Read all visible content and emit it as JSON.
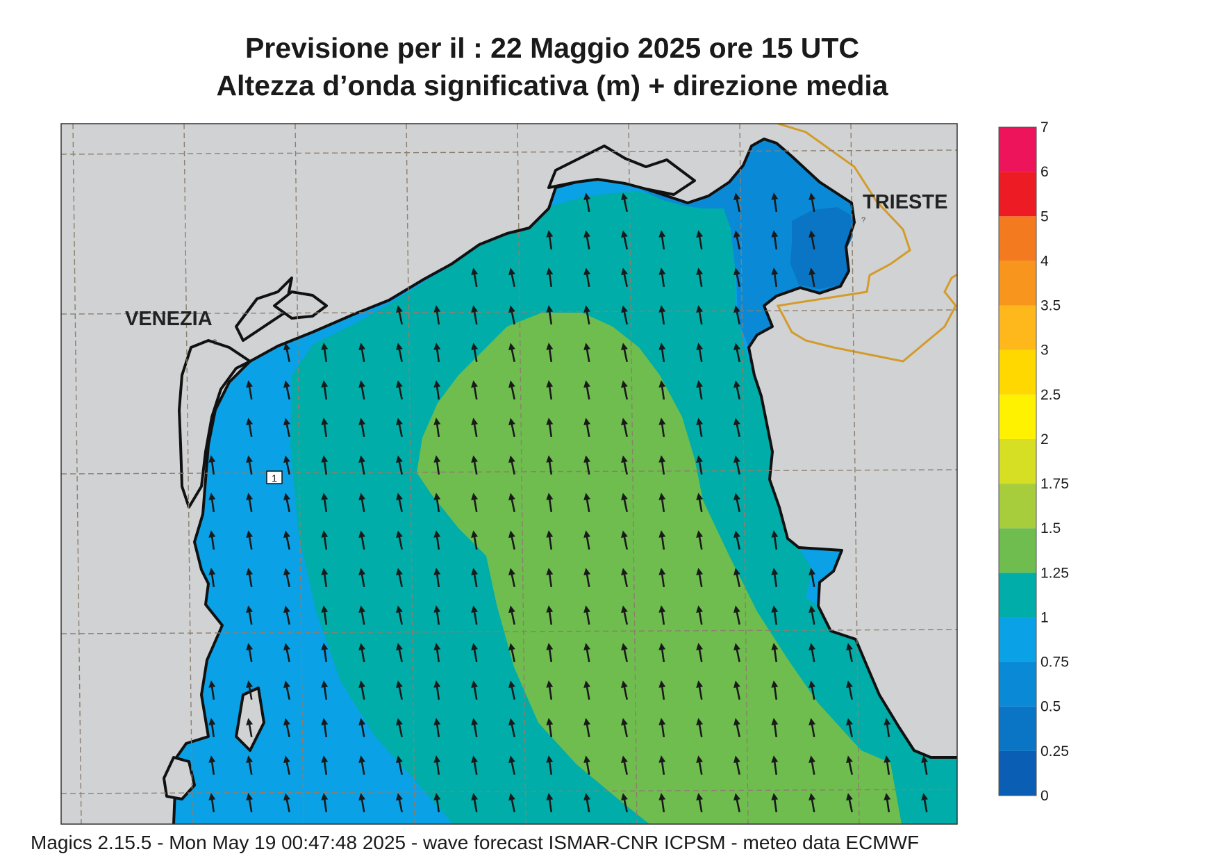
{
  "title_line1": "Previsione per il  :  22   Maggio  2025   ore 15 UTC",
  "title_line2": "Altezza d’onda significativa (m) + direzione media",
  "footer": "Magics 2.15.5 - Mon May 19 00:47:48 2025 - wave forecast  ISMAR-CNR  ICPSM - meteo data    ECMWF",
  "cities": [
    {
      "name": "VENEZIA"
    },
    {
      "name": "TRIESTE"
    }
  ],
  "buoy_label": "1",
  "legend": {
    "levels": [
      "0",
      "0.25",
      "0.5",
      "0.75",
      "1",
      "1.25",
      "1.5",
      "1.75",
      "2",
      "2.5",
      "3",
      "3.5",
      "4",
      "5",
      "6",
      "7"
    ],
    "colors": [
      "#0a5fb4",
      "#0a75c5",
      "#0a8ad6",
      "#0ba1e6",
      "#00ada9",
      "#6fbd4f",
      "#a7cd3c",
      "#d6df24",
      "#fff200",
      "#ffd800",
      "#ffb81c",
      "#f7951d",
      "#f47a20",
      "#ed1c24",
      "#ed145b"
    ]
  },
  "colors": {
    "land": "#d1d2d4",
    "sea_0_25": "#0a75c5",
    "sea_0_5": "#0a8ad6",
    "sea_0_75": "#0ba1e6",
    "sea_1": "#00ada9",
    "sea_1_25": "#6fbd4f",
    "coast": "#111111",
    "border": "#d39b2a",
    "grid": "#8c7f6e",
    "arrow": "#1a1a1a"
  },
  "wave_direction": "N"
}
